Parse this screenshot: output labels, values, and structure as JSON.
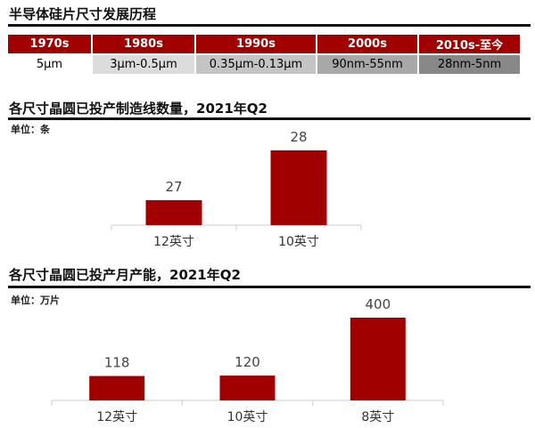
{
  "timeline": {
    "title": "半导体硅片尺寸发展历程",
    "headers": [
      "1970s",
      "1980s",
      "1990s",
      "2000s",
      "2010s-至今"
    ],
    "values": [
      "5μm",
      "3μm-0.5μm",
      "0.35μm-0.13μm",
      "90nm-55nm",
      "28nm-5nm"
    ]
  },
  "colors": {
    "bar": "#a00000",
    "cell_bg": [
      "#ffffff",
      "#dcdcdc",
      "#c4c4c4",
      "#a8a8a8",
      "#888888"
    ]
  },
  "chart_data": [
    {
      "type": "bar",
      "title": "各尺寸晶圆已投产制造线数量，2021年Q2",
      "unit": "单位：条",
      "categories": [
        "12英寸",
        "10英寸"
      ],
      "values": [
        27,
        28
      ],
      "ylim": [
        26.5,
        29
      ]
    },
    {
      "type": "bar",
      "title": "各尺寸晶圆已投产月产能，2021年Q2",
      "unit": "单位：万片",
      "categories": [
        "12英寸",
        "10英寸",
        "8英寸"
      ],
      "values": [
        118,
        120,
        400
      ],
      "ylim": [
        0,
        430
      ]
    }
  ]
}
